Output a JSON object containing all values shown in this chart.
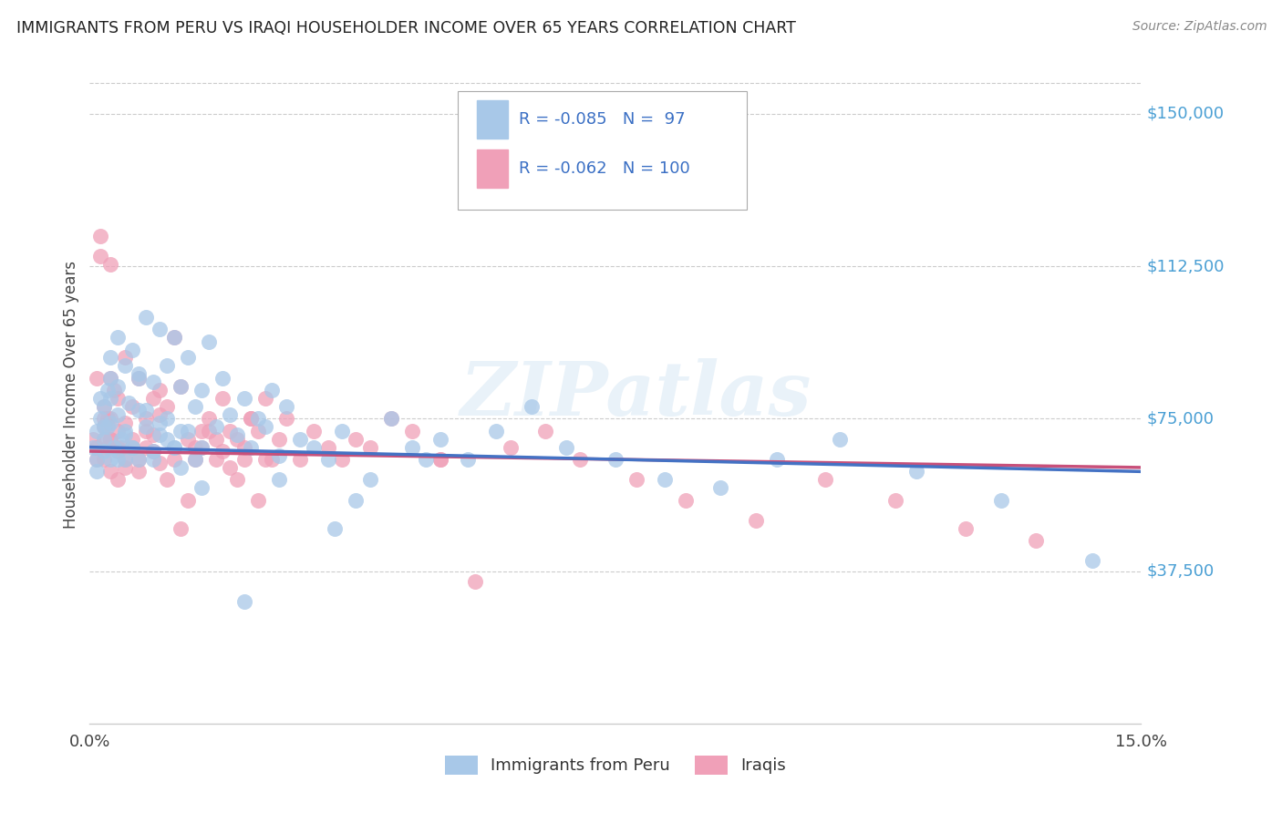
{
  "title": "IMMIGRANTS FROM PERU VS IRAQI HOUSEHOLDER INCOME OVER 65 YEARS CORRELATION CHART",
  "source": "Source: ZipAtlas.com",
  "ylabel": "Householder Income Over 65 years",
  "legend_labels": [
    "Immigrants from Peru",
    "Iraqis"
  ],
  "legend_r": [
    -0.085,
    -0.062
  ],
  "legend_n": [
    97,
    100
  ],
  "blue_color": "#a8c8e8",
  "pink_color": "#f0a0b8",
  "blue_line_color": "#4472c4",
  "pink_line_color": "#c8507a",
  "ytick_labels": [
    "$150,000",
    "$112,500",
    "$75,000",
    "$37,500"
  ],
  "ytick_values": [
    150000,
    112500,
    75000,
    37500
  ],
  "xlim": [
    0.0,
    0.15
  ],
  "ylim": [
    0,
    162000
  ],
  "watermark": "ZIPatlas",
  "peru_x": [
    0.0005,
    0.001,
    0.001,
    0.0015,
    0.0015,
    0.002,
    0.002,
    0.002,
    0.0025,
    0.0025,
    0.003,
    0.003,
    0.003,
    0.003,
    0.0035,
    0.004,
    0.004,
    0.004,
    0.0045,
    0.005,
    0.005,
    0.005,
    0.0055,
    0.006,
    0.006,
    0.007,
    0.007,
    0.007,
    0.008,
    0.008,
    0.009,
    0.009,
    0.01,
    0.01,
    0.011,
    0.011,
    0.012,
    0.012,
    0.013,
    0.013,
    0.014,
    0.015,
    0.016,
    0.016,
    0.017,
    0.018,
    0.019,
    0.02,
    0.021,
    0.022,
    0.023,
    0.024,
    0.025,
    0.026,
    0.027,
    0.028,
    0.03,
    0.032,
    0.034,
    0.036,
    0.038,
    0.04,
    0.043,
    0.046,
    0.05,
    0.054,
    0.058,
    0.063,
    0.068,
    0.075,
    0.082,
    0.09,
    0.098,
    0.107,
    0.118,
    0.13,
    0.143,
    0.001,
    0.002,
    0.003,
    0.004,
    0.005,
    0.006,
    0.007,
    0.008,
    0.009,
    0.01,
    0.011,
    0.012,
    0.013,
    0.014,
    0.015,
    0.016,
    0.048,
    0.035,
    0.027,
    0.022
  ],
  "peru_y": [
    68000,
    72000,
    65000,
    75000,
    80000,
    70000,
    67000,
    78000,
    73000,
    82000,
    65000,
    90000,
    85000,
    74000,
    68000,
    95000,
    83000,
    76000,
    70000,
    88000,
    72000,
    65000,
    79000,
    92000,
    68000,
    86000,
    77000,
    65000,
    100000,
    73000,
    84000,
    67000,
    97000,
    71000,
    88000,
    75000,
    95000,
    68000,
    83000,
    72000,
    90000,
    78000,
    82000,
    68000,
    94000,
    73000,
    85000,
    76000,
    71000,
    80000,
    68000,
    75000,
    73000,
    82000,
    66000,
    78000,
    70000,
    68000,
    65000,
    72000,
    55000,
    60000,
    75000,
    68000,
    70000,
    65000,
    72000,
    78000,
    68000,
    65000,
    60000,
    58000,
    65000,
    70000,
    62000,
    55000,
    40000,
    62000,
    73000,
    80000,
    65000,
    71000,
    68000,
    85000,
    77000,
    65000,
    74000,
    70000,
    68000,
    63000,
    72000,
    65000,
    58000,
    65000,
    48000,
    60000,
    30000
  ],
  "iraq_x": [
    0.0005,
    0.001,
    0.001,
    0.0015,
    0.0015,
    0.002,
    0.002,
    0.002,
    0.0025,
    0.0025,
    0.003,
    0.003,
    0.003,
    0.003,
    0.0035,
    0.004,
    0.004,
    0.004,
    0.0045,
    0.005,
    0.005,
    0.005,
    0.006,
    0.006,
    0.007,
    0.007,
    0.008,
    0.008,
    0.009,
    0.009,
    0.01,
    0.01,
    0.011,
    0.012,
    0.013,
    0.014,
    0.015,
    0.016,
    0.017,
    0.018,
    0.019,
    0.02,
    0.021,
    0.022,
    0.023,
    0.024,
    0.025,
    0.026,
    0.027,
    0.028,
    0.03,
    0.032,
    0.034,
    0.036,
    0.038,
    0.04,
    0.043,
    0.046,
    0.05,
    0.055,
    0.06,
    0.065,
    0.07,
    0.078,
    0.085,
    0.095,
    0.105,
    0.115,
    0.125,
    0.135,
    0.001,
    0.002,
    0.003,
    0.004,
    0.005,
    0.006,
    0.007,
    0.008,
    0.009,
    0.01,
    0.011,
    0.012,
    0.013,
    0.014,
    0.015,
    0.016,
    0.017,
    0.018,
    0.019,
    0.02,
    0.021,
    0.022,
    0.023,
    0.024,
    0.025,
    0.001,
    0.002,
    0.003,
    0.004,
    0.05
  ],
  "iraq_y": [
    70000,
    65000,
    68000,
    120000,
    115000,
    73000,
    65000,
    78000,
    68000,
    75000,
    62000,
    85000,
    75000,
    70000,
    82000,
    72000,
    67000,
    80000,
    68000,
    74000,
    63000,
    90000,
    78000,
    70000,
    65000,
    85000,
    68000,
    72000,
    71000,
    80000,
    76000,
    64000,
    78000,
    95000,
    83000,
    70000,
    68000,
    72000,
    75000,
    65000,
    80000,
    63000,
    70000,
    68000,
    75000,
    72000,
    80000,
    65000,
    70000,
    75000,
    65000,
    72000,
    68000,
    65000,
    70000,
    68000,
    75000,
    72000,
    65000,
    35000,
    68000,
    72000,
    65000,
    60000,
    55000,
    50000,
    60000,
    55000,
    48000,
    45000,
    68000,
    75000,
    70000,
    60000,
    65000,
    68000,
    62000,
    75000,
    67000,
    82000,
    60000,
    65000,
    48000,
    55000,
    65000,
    68000,
    72000,
    70000,
    67000,
    72000,
    60000,
    65000,
    75000,
    55000,
    65000,
    85000,
    70000,
    113000,
    68000,
    65000
  ]
}
